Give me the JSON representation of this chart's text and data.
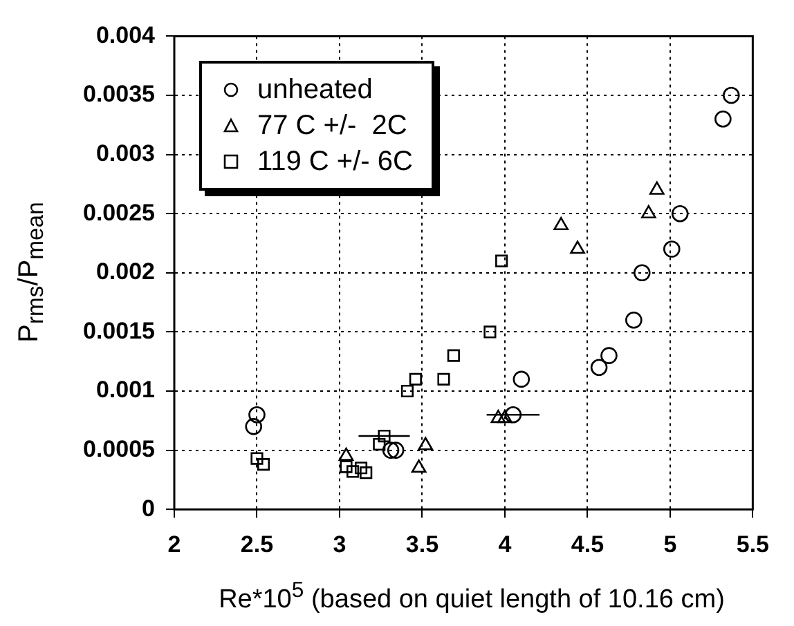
{
  "chart_data": {
    "type": "scatter",
    "xlabel": "Re*10$^{5}$ (based on quiet length of 10.16 cm)",
    "ylabel": "P$_{rms}$/P$_{mean}$",
    "xlim": [
      2,
      5.5
    ],
    "xticks": [
      2,
      2.5,
      3,
      3.5,
      4,
      4.5,
      5,
      5.5
    ],
    "ylim": [
      0,
      0.004
    ],
    "yticks": [
      0,
      0.0005,
      0.001,
      0.0015,
      0.002,
      0.0025,
      0.003,
      0.0035,
      0.004
    ],
    "grid": true,
    "legend": "top left",
    "series": [
      {
        "name": "unheated",
        "color": "#000000",
        "marker": "circle",
        "x": [
          2.5,
          2.48,
          3.31,
          3.34,
          4.05,
          4.1,
          4.57,
          4.63,
          4.78,
          4.83,
          5.01,
          5.06,
          5.32,
          5.37
        ],
        "values": [
          0.0008,
          0.0007,
          0.0005,
          0.0005,
          0.0008,
          0.0011,
          0.0012,
          0.0013,
          0.0016,
          0.002,
          0.0022,
          0.0025,
          0.0033,
          0.0035
        ],
        "xerrors": [
          null,
          null,
          null,
          null,
          0.16,
          null,
          null,
          null,
          null,
          null,
          null,
          null,
          null,
          null
        ]
      },
      {
        "name": "77 C +/-  2C",
        "color": "#000000",
        "marker": "triangle",
        "x": [
          3.04,
          3.48,
          3.52,
          3.96,
          4.0,
          4.34,
          4.44,
          4.87,
          4.92
        ],
        "values": [
          0.00045,
          0.00035,
          0.00054,
          0.00077,
          0.00077,
          0.0024,
          0.0022,
          0.0025,
          0.0027
        ]
      },
      {
        "name": "119 C +/- 6C",
        "color": "#000000",
        "marker": "square",
        "x": [
          2.5,
          2.54,
          3.04,
          3.08,
          3.13,
          3.16,
          3.24,
          3.27,
          3.41,
          3.46,
          3.63,
          3.69,
          3.91,
          3.98
        ],
        "values": [
          0.00043,
          0.00038,
          0.00036,
          0.00032,
          0.00035,
          0.00031,
          0.00055,
          0.00062,
          0.001,
          0.0011,
          0.0011,
          0.0013,
          0.0015,
          0.0021
        ],
        "xerrors": [
          null,
          null,
          null,
          null,
          null,
          null,
          null,
          0.155,
          null,
          null,
          null,
          null,
          null,
          null
        ]
      }
    ]
  }
}
